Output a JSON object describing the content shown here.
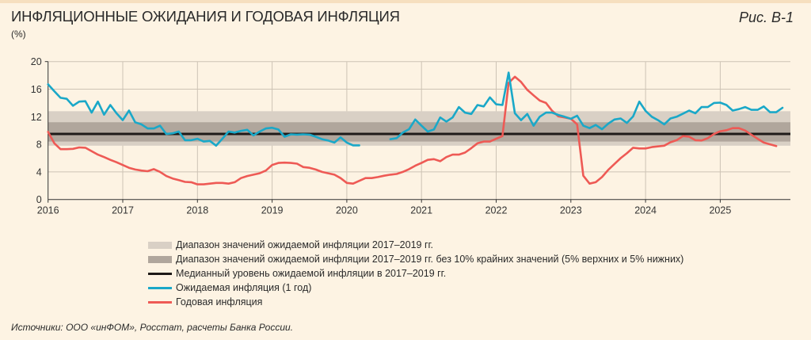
{
  "header": {
    "title": "ИНФЛЯЦИОННЫЕ ОЖИДАНИЯ И ГОДОВАЯ ИНФЛЯЦИЯ",
    "unit": "(%)",
    "figure_label": "Рис. В-1"
  },
  "footnote": "Источники: ООО «инФОМ», Росстат, расчеты Банка России.",
  "colors": {
    "background": "#fdf3e3",
    "band_full": "#d9d0c5",
    "band_trimmed": "#b0a69c",
    "median": "#1e1a18",
    "expected": "#1aa8c8",
    "annual": "#ee5a55",
    "grid": "#cdc3b5"
  },
  "chart_data": {
    "type": "line",
    "title": "ИНФЛЯЦИОННЫЕ ОЖИДАНИЯ И ГОДОВАЯ ИНФЛЯЦИЯ",
    "ylabel": "(%)",
    "ylim": [
      0,
      20
    ],
    "yticks": [
      "0",
      "4",
      "8",
      "12",
      "16",
      "20"
    ],
    "xticks": [
      "2016",
      "2017",
      "2018",
      "2019",
      "2020",
      "2021",
      "2022",
      "2023",
      "2024",
      "2025"
    ],
    "x_start": "2016-01",
    "x_frequency": "monthly",
    "grid": true,
    "legend_placement": "bottom",
    "bands": [
      {
        "name": "Диапазон значений ожидаемой инфляции 2017–2019 гг.",
        "low": 7.8,
        "high": 12.8
      },
      {
        "name": "Диапазон значений ожидаемой инфляции 2017–2019 гг. без 10% крайних значений (5% верхних и 5% нижних)",
        "low": 8.4,
        "high": 11.2
      }
    ],
    "median": {
      "name": "Медианный уровень ожидаемой инфляции в 2017–2019 гг.",
      "value": 9.5
    },
    "series": [
      {
        "name": "Ожидаемая инфляция (1 год)",
        "values": [
          16.7,
          15.7,
          14.75,
          14.6,
          13.6,
          14.2,
          14.25,
          12.6,
          14.2,
          12.3,
          13.7,
          12.5,
          11.5,
          12.9,
          11.2,
          10.9,
          10.3,
          10.3,
          10.7,
          9.5,
          9.6,
          9.85,
          8.6,
          8.6,
          8.8,
          8.4,
          8.5,
          7.8,
          8.8,
          9.85,
          9.7,
          9.95,
          10.1,
          9.3,
          9.85,
          10.3,
          10.4,
          10.15,
          9.1,
          9.45,
          9.4,
          9.45,
          9.4,
          9.1,
          8.75,
          8.55,
          8.25,
          9.0,
          8.25,
          7.85,
          7.85,
          null,
          null,
          null,
          null,
          8.75,
          8.9,
          9.7,
          10.2,
          11.6,
          10.7,
          9.85,
          10.15,
          11.9,
          11.3,
          11.9,
          13.4,
          12.6,
          12.4,
          13.7,
          13.5,
          14.8,
          13.8,
          13.7,
          18.4,
          12.5,
          11.5,
          12.4,
          10.7,
          12.0,
          12.6,
          12.6,
          12.25,
          12.0,
          11.7,
          12.15,
          10.7,
          10.35,
          10.8,
          10.2,
          11.0,
          11.6,
          11.75,
          11.1,
          12.05,
          14.2,
          12.85,
          12.0,
          11.5,
          10.9,
          11.75,
          12.0,
          12.45,
          12.9,
          12.5,
          13.4,
          13.4,
          14.0,
          14.05,
          13.7,
          12.9,
          13.1,
          13.4,
          13.0,
          13.0,
          13.5,
          12.65,
          12.65,
          13.3
        ]
      },
      {
        "name": "Годовая инфляция",
        "values": [
          9.8,
          8.15,
          7.3,
          7.3,
          7.35,
          7.55,
          7.5,
          7.0,
          6.5,
          6.15,
          5.75,
          5.4,
          5.0,
          4.6,
          4.35,
          4.2,
          4.1,
          4.4,
          4.0,
          3.4,
          3.05,
          2.8,
          2.55,
          2.5,
          2.2,
          2.2,
          2.3,
          2.4,
          2.4,
          2.3,
          2.5,
          3.1,
          3.4,
          3.6,
          3.8,
          4.2,
          5.0,
          5.3,
          5.35,
          5.3,
          5.2,
          4.7,
          4.6,
          4.35,
          4.0,
          3.8,
          3.6,
          3.1,
          2.4,
          2.3,
          2.7,
          3.1,
          3.1,
          3.25,
          3.45,
          3.6,
          3.7,
          4.0,
          4.4,
          4.9,
          5.3,
          5.75,
          5.85,
          5.55,
          6.15,
          6.5,
          6.5,
          6.8,
          7.45,
          8.15,
          8.4,
          8.4,
          8.8,
          9.2,
          16.9,
          17.8,
          17.05,
          15.9,
          15.1,
          14.35,
          14.0,
          12.85,
          12.05,
          11.9,
          11.7,
          10.9,
          3.45,
          2.3,
          2.5,
          3.25,
          4.3,
          5.15,
          6.0,
          6.7,
          7.5,
          7.4,
          7.4,
          7.6,
          7.7,
          7.8,
          8.3,
          8.6,
          9.2,
          9.1,
          8.6,
          8.55,
          8.9,
          9.5,
          9.9,
          10.05,
          10.35,
          10.35,
          10.0,
          9.4,
          8.8,
          8.25,
          8.0,
          7.75
        ]
      }
    ]
  }
}
